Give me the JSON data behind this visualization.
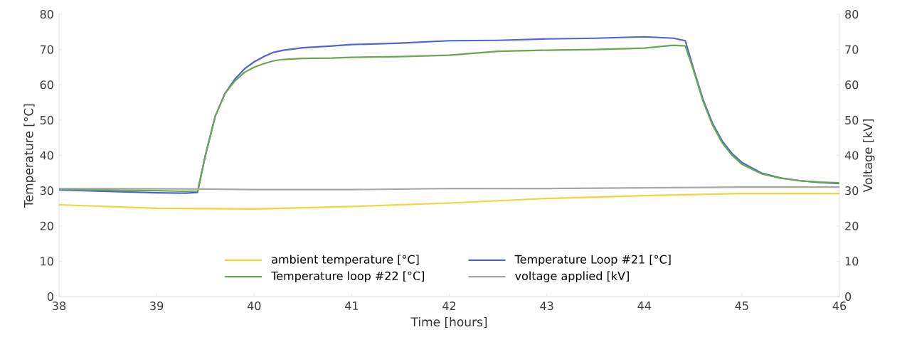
{
  "chart_data": {
    "type": "line",
    "xlabel": "Time [hours]",
    "ylabel": "Temperature [°C]",
    "y2label": "Voltage [kV]",
    "xlim": [
      38,
      46
    ],
    "xticks": [
      38,
      39,
      40,
      41,
      42,
      43,
      44,
      45,
      46
    ],
    "ylim": [
      0,
      80
    ],
    "yticks": [
      0,
      10,
      20,
      30,
      40,
      50,
      60,
      70,
      80
    ],
    "y2lim": [
      0,
      80
    ],
    "y2ticks": [
      0,
      10,
      20,
      30,
      40,
      50,
      60,
      70,
      80
    ],
    "grid": false,
    "legend": "bottom",
    "marker": "none",
    "line_style": "solid",
    "series": [
      {
        "name": "ambient temperature [°C]",
        "color": "#f5d33a",
        "x": [
          38,
          39,
          40,
          41,
          42,
          43,
          44,
          45,
          46
        ],
        "values": [
          26,
          25,
          24.8,
          25.5,
          26.5,
          27.8,
          28.6,
          29.2,
          29.2
        ]
      },
      {
        "name": "Temperature Loop #21 [°C]",
        "color": "#5064d8",
        "x": [
          38,
          38.5,
          39,
          39.3,
          39.42,
          39.5,
          39.6,
          39.7,
          39.8,
          39.9,
          40,
          40.1,
          40.2,
          40.3,
          40.5,
          40.8,
          41,
          41.5,
          42,
          42.5,
          43,
          43.5,
          44,
          44.3,
          44.42,
          44.5,
          44.6,
          44.7,
          44.8,
          44.9,
          45,
          45.2,
          45.4,
          45.6,
          45.8,
          46
        ],
        "values": [
          30.2,
          29.8,
          29.4,
          29.3,
          29.5,
          40,
          51,
          57.5,
          61.5,
          64.5,
          66.5,
          68,
          69.2,
          69.8,
          70.5,
          71,
          71.4,
          71.8,
          72.5,
          72.6,
          73,
          73.2,
          73.6,
          73.2,
          72.5,
          65,
          56,
          49,
          44,
          40.5,
          38,
          35,
          33.6,
          32.8,
          32.3,
          32
        ]
      },
      {
        "name": "Temperature loop #22 [°C]",
        "color": "#6aa84f",
        "x": [
          38,
          38.5,
          39,
          39.3,
          39.42,
          39.5,
          39.6,
          39.7,
          39.8,
          39.9,
          40,
          40.1,
          40.2,
          40.3,
          40.5,
          40.8,
          41,
          41.5,
          42,
          42.5,
          43,
          43.5,
          44,
          44.3,
          44.42,
          44.5,
          44.6,
          44.7,
          44.8,
          44.9,
          45,
          45.2,
          45.4,
          45.6,
          45.8,
          46
        ],
        "values": [
          30.4,
          30.2,
          30,
          29.8,
          29.9,
          40,
          51,
          57.5,
          61,
          63.5,
          65,
          66,
          66.8,
          67.2,
          67.5,
          67.6,
          67.8,
          68,
          68.4,
          69.5,
          69.8,
          70,
          70.4,
          71.2,
          71,
          64.5,
          55.5,
          48.5,
          43.5,
          40,
          37.5,
          34.8,
          33.5,
          32.8,
          32.4,
          32.2
        ]
      },
      {
        "name": "voltage applied [kV]",
        "color": "#a8a8a8",
        "axis": "y2",
        "x": [
          38,
          39.4,
          40,
          41,
          42,
          43,
          44,
          45,
          46
        ],
        "values": [
          30.6,
          30.5,
          30.3,
          30.3,
          30.6,
          30.6,
          30.8,
          31,
          31
        ]
      }
    ]
  }
}
